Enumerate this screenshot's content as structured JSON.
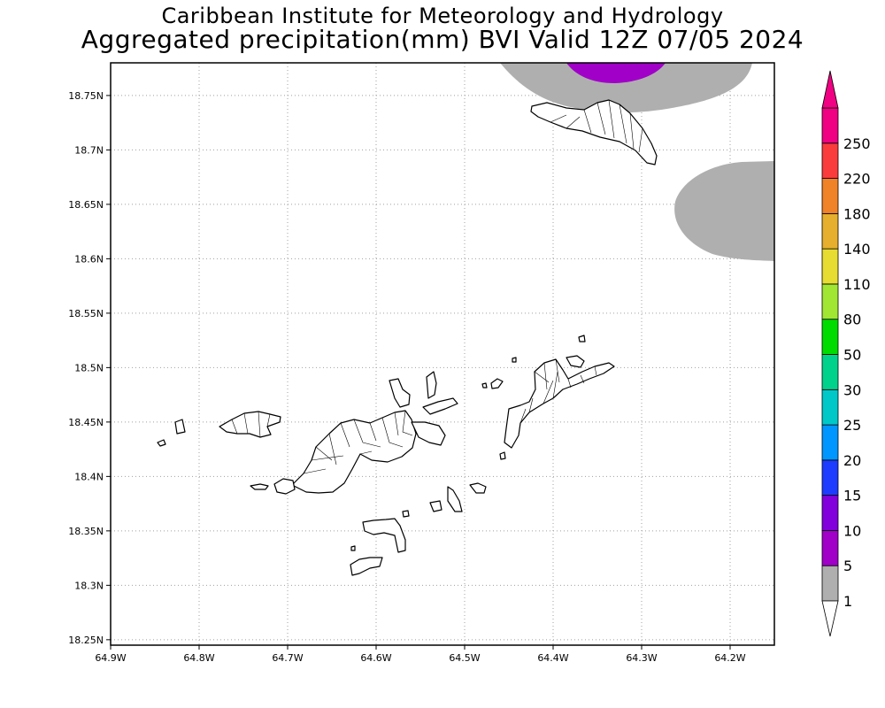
{
  "header": {
    "title_line1": "Caribbean Institute for Meteorology and Hydrology",
    "title_line2": "Aggregated precipitation(mm) BVI Valid 12Z 07/05 2024"
  },
  "map": {
    "lon_range": [
      -64.9,
      -64.15
    ],
    "lat_range": [
      18.245,
      18.78
    ],
    "lon_ticks": [
      {
        "value": -64.9,
        "label": "64.9W"
      },
      {
        "value": -64.8,
        "label": "64.8W"
      },
      {
        "value": -64.7,
        "label": "64.7W"
      },
      {
        "value": -64.6,
        "label": "64.6W"
      },
      {
        "value": -64.5,
        "label": "64.5W"
      },
      {
        "value": -64.4,
        "label": "64.4W"
      },
      {
        "value": -64.3,
        "label": "64.3W"
      },
      {
        "value": -64.2,
        "label": "64.2W"
      }
    ],
    "lat_ticks": [
      {
        "value": 18.75,
        "label": "18.75N"
      },
      {
        "value": 18.7,
        "label": "18.7N"
      },
      {
        "value": 18.65,
        "label": "18.65N"
      },
      {
        "value": 18.6,
        "label": "18.6N"
      },
      {
        "value": 18.55,
        "label": "18.55N"
      },
      {
        "value": 18.5,
        "label": "18.5N"
      },
      {
        "value": 18.45,
        "label": "18.45N"
      },
      {
        "value": 18.4,
        "label": "18.4N"
      },
      {
        "value": 18.35,
        "label": "18.35N"
      },
      {
        "value": 18.3,
        "label": "18.3N"
      },
      {
        "value": 18.25,
        "label": "18.25N"
      }
    ],
    "grid": "dotted"
  },
  "colorbar": {
    "unit": "mm",
    "levels": [
      "1",
      "5",
      "10",
      "15",
      "20",
      "25",
      "30",
      "50",
      "80",
      "110",
      "140",
      "180",
      "220",
      "250"
    ],
    "colors": [
      "#afafaf",
      "#a000c8",
      "#8200dc",
      "#1e3cff",
      "#0096ff",
      "#00c8c8",
      "#00d28c",
      "#00dc00",
      "#a0e632",
      "#e6dc32",
      "#e6af2d",
      "#f08228",
      "#fa3c3c",
      "#f00082"
    ]
  }
}
